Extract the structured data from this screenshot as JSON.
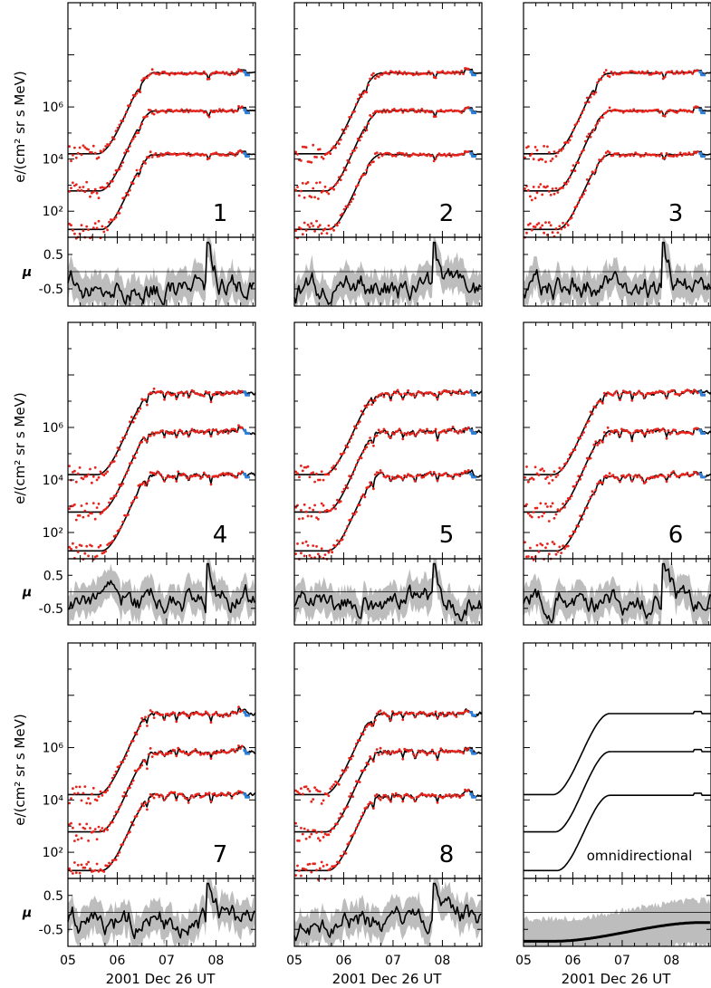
{
  "chart_data": {
    "type": "line",
    "panels": [
      {
        "id": 1,
        "label": "1"
      },
      {
        "id": 2,
        "label": "2"
      },
      {
        "id": 3,
        "label": "3"
      },
      {
        "id": 4,
        "label": "4"
      },
      {
        "id": 5,
        "label": "5"
      },
      {
        "id": 6,
        "label": "6"
      },
      {
        "id": 7,
        "label": "7"
      },
      {
        "id": 8,
        "label": "8"
      },
      {
        "id": 9,
        "label": "omnidirectional"
      }
    ],
    "flux_axis": {
      "label": "e/(cm² sr s MeV)",
      "scale": "log",
      "ylim": [
        10,
        10000000000
      ],
      "tick_labels": [
        "10²",
        "10⁴",
        "10⁶"
      ]
    },
    "mu_axis": {
      "label": "μ",
      "ylim": [
        -1,
        1
      ],
      "tick_labels": [
        "0.5",
        "-0.5"
      ]
    },
    "x_axis": {
      "label": "2001 Dec 26 UT",
      "xlim": [
        5,
        8.8
      ],
      "tick_labels": [
        "05",
        "06",
        "07",
        "08"
      ]
    },
    "channels": [
      {
        "pre_event": 16000,
        "plateau": 20000000
      },
      {
        "pre_event": 600,
        "plateau": 700000
      },
      {
        "pre_event": 20,
        "plateau": 15000
      }
    ],
    "event": {
      "onset_hour": 5.6,
      "rise_end_hour": 6.4
    },
    "colors": {
      "model": "#000000",
      "data_points": "#e8231c",
      "highlight": "#2e7fd8",
      "mu_band": "#bdbdbd"
    }
  }
}
